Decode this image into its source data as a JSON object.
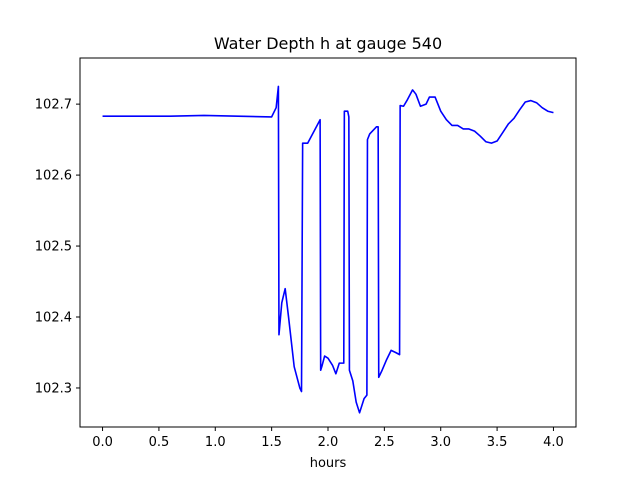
{
  "chart_data": {
    "type": "line",
    "title": "Water Depth h at gauge 540",
    "xlabel": "hours",
    "ylabel": "",
    "xlim": [
      -0.2,
      4.2
    ],
    "ylim": [
      102.245,
      102.765
    ],
    "xticks": [
      0.0,
      0.5,
      1.0,
      1.5,
      2.0,
      2.5,
      3.0,
      3.5,
      4.0
    ],
    "xtick_labels": [
      "0.0",
      "0.5",
      "1.0",
      "1.5",
      "2.0",
      "2.5",
      "3.0",
      "3.5",
      "4.0"
    ],
    "yticks": [
      102.3,
      102.4,
      102.5,
      102.6,
      102.7
    ],
    "ytick_labels": [
      "102.3",
      "102.4",
      "102.5",
      "102.6",
      "102.7"
    ],
    "grid": false,
    "legend": "none",
    "colors": {
      "line": "#0000ff",
      "axes": "#000000",
      "background": "#ffffff"
    },
    "series": [
      {
        "x": [
          0.0,
          0.3,
          0.6,
          0.9,
          1.2,
          1.5,
          1.54,
          1.56,
          1.565,
          1.59,
          1.62,
          1.65,
          1.7,
          1.75,
          1.765,
          1.775,
          1.785,
          1.82,
          1.87,
          1.93,
          1.935,
          1.945,
          1.97,
          2.0,
          2.04,
          2.07,
          2.1,
          2.14,
          2.145,
          2.175,
          2.185,
          2.19,
          2.22,
          2.25,
          2.28,
          2.32,
          2.345,
          2.35,
          2.37,
          2.43,
          2.445,
          2.45,
          2.48,
          2.52,
          2.56,
          2.6,
          2.635,
          2.64,
          2.67,
          2.7,
          2.75,
          2.78,
          2.82,
          2.87,
          2.9,
          2.95,
          3.0,
          3.05,
          3.1,
          3.15,
          3.2,
          3.25,
          3.3,
          3.35,
          3.4,
          3.45,
          3.5,
          3.55,
          3.6,
          3.65,
          3.7,
          3.75,
          3.8,
          3.85,
          3.9,
          3.95,
          4.0
        ],
        "y": [
          102.683,
          102.683,
          102.683,
          102.684,
          102.683,
          102.682,
          102.695,
          102.725,
          102.375,
          102.42,
          102.44,
          102.4,
          102.33,
          102.3,
          102.295,
          102.645,
          102.645,
          102.645,
          102.66,
          102.678,
          102.325,
          102.33,
          102.345,
          102.342,
          102.332,
          102.32,
          102.335,
          102.335,
          102.69,
          102.69,
          102.682,
          102.325,
          102.31,
          102.28,
          102.265,
          102.285,
          102.29,
          102.65,
          102.658,
          102.668,
          102.668,
          102.315,
          102.325,
          102.34,
          102.353,
          102.35,
          102.347,
          102.698,
          102.697,
          102.705,
          102.72,
          102.714,
          102.697,
          102.7,
          102.71,
          102.71,
          102.69,
          102.678,
          102.67,
          102.67,
          102.665,
          102.665,
          102.662,
          102.655,
          102.647,
          102.645,
          102.648,
          102.66,
          102.672,
          102.68,
          102.692,
          102.703,
          102.705,
          102.702,
          102.695,
          102.69,
          102.688
        ]
      }
    ]
  }
}
